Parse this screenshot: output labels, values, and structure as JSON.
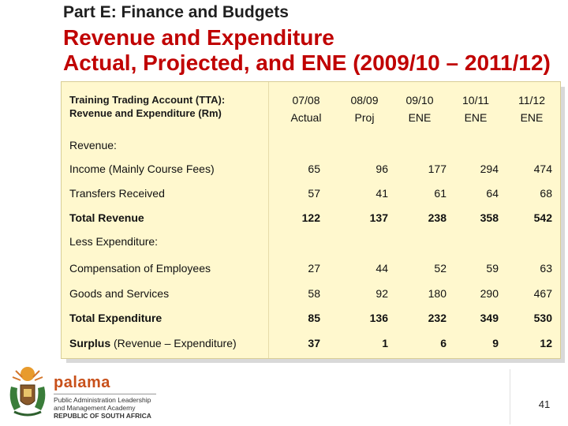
{
  "header": {
    "kicker": "Part E: Finance and Budgets",
    "title_line1": "Revenue and Expenditure",
    "title_line2": "Actual, Projected, and ENE (2009/10 – 2011/12)"
  },
  "table": {
    "label_line1": "Training Trading Account (TTA):",
    "label_line2": "Revenue and Expenditure (Rm)",
    "columns": [
      {
        "year": "07/08",
        "kind": "Actual"
      },
      {
        "year": "08/09",
        "kind": "Proj"
      },
      {
        "year": "09/10",
        "kind": "ENE"
      },
      {
        "year": "10/11",
        "kind": "ENE"
      },
      {
        "year": "11/12",
        "kind": "ENE"
      }
    ],
    "revenue_heading": "Revenue:",
    "expenditure_heading": "Less Expenditure:",
    "rows": [
      {
        "label": "Income (Mainly Course Fees)",
        "values": [
          "65",
          "96",
          "177",
          "294",
          "474"
        ]
      },
      {
        "label": "Transfers Received",
        "values": [
          "57",
          "41",
          "61",
          "64",
          "68"
        ]
      },
      {
        "label": "Total Revenue",
        "values": [
          "122",
          "137",
          "238",
          "358",
          "542"
        ]
      },
      {
        "label": "Compensation of Employees",
        "values": [
          "27",
          "44",
          "52",
          "59",
          "63"
        ]
      },
      {
        "label": "Goods and Services",
        "values": [
          "58",
          "92",
          "180",
          "290",
          "467"
        ]
      },
      {
        "label": "Total Expenditure",
        "values": [
          "85",
          "136",
          "232",
          "349",
          "530"
        ]
      },
      {
        "label_bold": "Surplus",
        "label_rest": " (Revenue – Expenditure)",
        "values": [
          "37",
          "1",
          "6",
          "9",
          "12"
        ]
      }
    ]
  },
  "footer": {
    "logo_name": "palama",
    "logo_line1": "Public Administration Leadership",
    "logo_line2": "and Management Academy",
    "logo_line3": "REPUBLIC OF SOUTH AFRICA",
    "page_number": "41"
  }
}
